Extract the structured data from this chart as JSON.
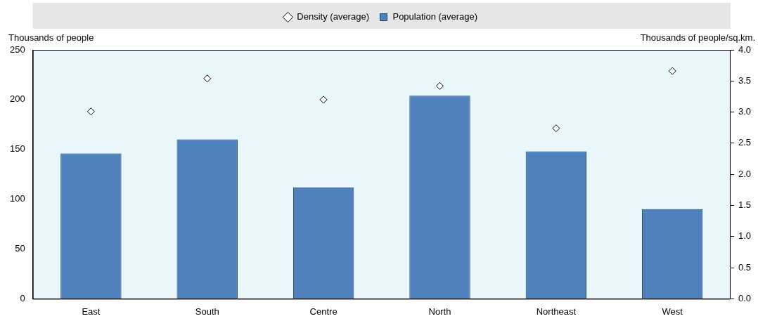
{
  "chart_data": {
    "type": "bar",
    "ylabel": "Thousands of people",
    "y2label": "Thousands of people/sq.km.",
    "categories": [
      "East",
      "South",
      "Centre",
      "North",
      "Northeast",
      "West"
    ],
    "series": [
      {
        "name": "Population (average)",
        "color": "#4f81bd",
        "values": [
          146,
          160,
          112,
          204,
          148,
          90
        ]
      },
      {
        "name": "Density (average)",
        "type": "scatter",
        "axis": "y2",
        "color": "#000000",
        "marker": "diamond",
        "values": [
          3.01,
          3.54,
          3.2,
          3.42,
          2.74,
          3.66
        ]
      }
    ],
    "ylim": [
      0,
      250
    ],
    "yticks": [
      0,
      50,
      100,
      150,
      200,
      250
    ],
    "y2lim": [
      0,
      4
    ],
    "y2ticks": [
      {
        "value": 0,
        "label": "0.0"
      },
      {
        "value": 0.5,
        "label": "0.5"
      },
      {
        "value": 1,
        "label": "1.0"
      },
      {
        "value": 1.5,
        "label": "1.5"
      },
      {
        "value": 2,
        "label": "2.0"
      },
      {
        "value": 2.5,
        "label": "2.5"
      },
      {
        "value": 3,
        "label": "3.0"
      },
      {
        "value": 3.5,
        "label": "3.5"
      },
      {
        "value": 4,
        "label": "4.0"
      }
    ],
    "grid": false,
    "legend": "top"
  }
}
